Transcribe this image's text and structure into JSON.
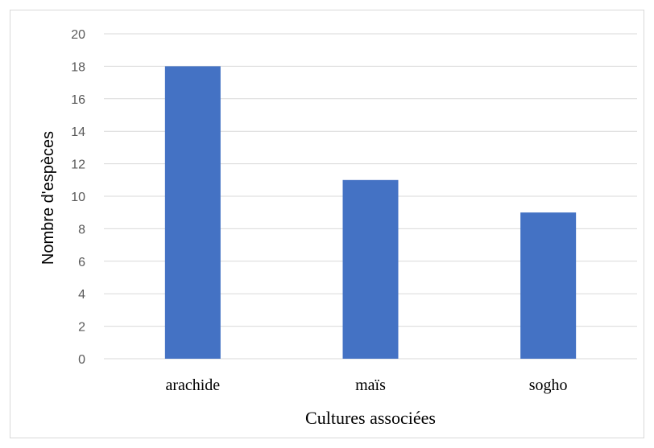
{
  "chart_data": {
    "type": "bar",
    "title": "",
    "categories": [
      "arachide",
      "maïs",
      "sogho"
    ],
    "series": [
      {
        "values": [
          18,
          11,
          9
        ]
      }
    ],
    "xlabel": "Cultures associées",
    "ylabel": "Nombre d'espèces",
    "ylim": [
      0,
      20
    ],
    "yticks": [
      0,
      2,
      4,
      6,
      8,
      10,
      12,
      14,
      16,
      18,
      20
    ],
    "grid": true,
    "legend": "none",
    "colors": {
      "bar": "#4472c4",
      "grid": "#d9d9d9",
      "axis": "#d9d9d9",
      "tick_text": "#595959"
    }
  }
}
